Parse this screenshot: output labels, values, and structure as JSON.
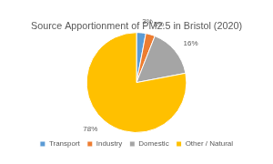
{
  "chart_data": {
    "type": "pie",
    "title": "Source Apportionment of PM2.5 in Bristol (2020)",
    "categories": [
      "Transport",
      "Industry",
      "Domestic",
      "Other / Natural"
    ],
    "values": [
      3,
      3,
      16,
      78
    ],
    "value_labels": [
      "3%",
      "3%",
      "16%",
      "78%"
    ],
    "colors": [
      "#5b9bd5",
      "#ed7d31",
      "#a5a5a5",
      "#ffc000"
    ],
    "data_labels": true,
    "legend": "bottom"
  }
}
